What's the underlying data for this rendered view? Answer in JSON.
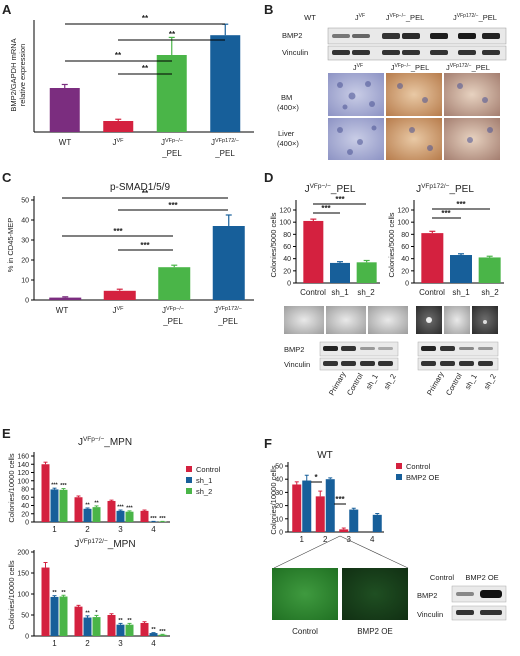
{
  "panels": {
    "A": {
      "letter": "A",
      "ylabel_line1": "BMP2/GAPDH mRNA",
      "ylabel_line2": "relative expression",
      "sig": [
        "**",
        "**",
        "**",
        "**"
      ]
    },
    "B": {
      "letter": "B",
      "lanes": [
        "WT",
        "J",
        "J",
        "J"
      ],
      "lane_sup": [
        "",
        "VF",
        "VFp−/−",
        "VFp172/−"
      ],
      "lane_suffix": [
        "",
        "",
        "_PEL",
        "_PEL"
      ],
      "blots": [
        "BMP2",
        "Vinculin"
      ],
      "tissue_cols": [
        "J",
        "J",
        "J"
      ],
      "tissue_sup": [
        "VF",
        "VFp−/−",
        "VFp172/−"
      ],
      "tissue_suffix": [
        "",
        "_PEL",
        "_PEL"
      ],
      "rows": [
        {
          "l1": "BM",
          "l2": "(400×)"
        },
        {
          "l1": "Liver",
          "l2": "(400×)"
        }
      ]
    },
    "C": {
      "letter": "C",
      "title": "p-SMAD1/5/9",
      "ylabel": "% in CD45-MEP",
      "sig": [
        "**",
        "***",
        "***",
        "***"
      ]
    },
    "D": {
      "letter": "D",
      "left_title": "J",
      "left_sup": "VFp−/−",
      "left_suffix": "_PEL",
      "right_title": "J",
      "right_sup": "VFp172/−",
      "right_suffix": "_PEL",
      "ylabel": "Colonies/5000 cells",
      "sig": [
        "***",
        "***"
      ],
      "blots": [
        "BMP2",
        "Vinculin"
      ],
      "blot_lanes": [
        "Primary",
        "Control",
        "sh_1",
        "sh_2"
      ]
    },
    "E": {
      "letter": "E",
      "top_title": "J",
      "top_sup": "VFp−/−",
      "top_suffix": "_MPN",
      "bottom_title": "J",
      "bottom_sup": "VFp172/−",
      "bottom_suffix": "_MPN",
      "ylabel": "Colonies/10000 cells"
    },
    "F": {
      "letter": "F",
      "title": "WT",
      "ylabel": "Colonies/10000 cells",
      "sig": [
        "*",
        "***"
      ],
      "img_labels": [
        "Control",
        "BMP2 OE"
      ],
      "blot_lanes": [
        "Control",
        "BMP2 OE"
      ],
      "blots": [
        "BMP2",
        "Vinculin"
      ]
    }
  },
  "chart_data": [
    {
      "panel": "A",
      "type": "bar",
      "categories": [
        "WT",
        "JVF",
        "JVFp−/−_PEL",
        "JVFp172/−_PEL"
      ],
      "values": [
        1.0,
        0.25,
        1.75,
        2.2
      ],
      "errors": [
        0.08,
        0.04,
        0.4,
        0.25
      ],
      "colors": [
        "#7b2d7f",
        "#d4213f",
        "#4ab548",
        "#175f9a"
      ],
      "ylim": [
        0,
        2.5
      ],
      "ylabel": "BMP2/GAPDH mRNA relative expression"
    },
    {
      "panel": "C",
      "type": "bar",
      "title": "p-SMAD1/5/9",
      "categories": [
        "WT",
        "JVF",
        "JVFp−/−_PEL",
        "JVFp172/−_PEL"
      ],
      "values": [
        1.2,
        4.6,
        16.4,
        37
      ],
      "errors": [
        0.4,
        0.8,
        1.0,
        5.5
      ],
      "colors": [
        "#7b2d7f",
        "#d4213f",
        "#4ab548",
        "#175f9a"
      ],
      "ylim": [
        0,
        50
      ],
      "yticks": [
        0,
        10,
        20,
        30,
        40,
        50
      ],
      "ylabel": "% in CD45-MEP"
    },
    {
      "panel": "D-left",
      "type": "bar",
      "categories": [
        "Control",
        "sh_1",
        "sh_2"
      ],
      "values": [
        102,
        33,
        34
      ],
      "errors": [
        3,
        2,
        3
      ],
      "colors": [
        "#d4213f",
        "#175f9a",
        "#4ab548"
      ],
      "ylim": [
        0,
        120
      ],
      "yticks": [
        0,
        20,
        40,
        60,
        80,
        100,
        120
      ],
      "ylabel": "Colonies/5000 cells"
    },
    {
      "panel": "D-right",
      "type": "bar",
      "categories": [
        "Control",
        "sh_1",
        "sh_2"
      ],
      "values": [
        82,
        46,
        42
      ],
      "errors": [
        3,
        2,
        2
      ],
      "colors": [
        "#d4213f",
        "#175f9a",
        "#4ab548"
      ],
      "ylim": [
        0,
        120
      ],
      "yticks": [
        0,
        20,
        40,
        60,
        80,
        100,
        120
      ],
      "ylabel": "Colonies/5000 cells"
    },
    {
      "panel": "E-top",
      "type": "bar",
      "categories": [
        "1",
        "2",
        "3",
        "4"
      ],
      "series": [
        {
          "name": "Control",
          "values": [
            140,
            60,
            51,
            27
          ],
          "errors": [
            5,
            3,
            2,
            2
          ],
          "sig": [
            "",
            "",
            "",
            ""
          ]
        },
        {
          "name": "sh_1",
          "values": [
            79,
            32,
            27,
            1
          ],
          "errors": [
            3,
            2,
            2,
            0.5
          ],
          "sig": [
            "***",
            "**",
            "***",
            "***"
          ]
        },
        {
          "name": "sh_2",
          "values": [
            78,
            36,
            25,
            1
          ],
          "errors": [
            3,
            3,
            2,
            0.5
          ],
          "sig": [
            "***",
            "**",
            "***",
            "***"
          ]
        }
      ],
      "colors": [
        "#d4213f",
        "#175f9a",
        "#4ab548"
      ],
      "ylim": [
        0,
        160
      ],
      "yticks": [
        0,
        20,
        40,
        60,
        80,
        100,
        120,
        140,
        160
      ],
      "ylabel": "Colonies/10000 cells"
    },
    {
      "panel": "E-bottom",
      "type": "bar",
      "categories": [
        "1",
        "2",
        "3",
        "4"
      ],
      "series": [
        {
          "name": "Control",
          "values": [
            163,
            70,
            50,
            31
          ],
          "errors": [
            12,
            3,
            3,
            3
          ],
          "sig": [
            "",
            "",
            "",
            ""
          ]
        },
        {
          "name": "sh_1",
          "values": [
            93,
            44,
            27,
            7
          ],
          "errors": [
            3,
            4,
            3,
            1
          ],
          "sig": [
            "**",
            "**",
            "**",
            "**"
          ]
        },
        {
          "name": "sh_2",
          "values": [
            94,
            45,
            27,
            3
          ],
          "errors": [
            3,
            4,
            3,
            1
          ],
          "sig": [
            "**",
            "*",
            "**",
            "***"
          ]
        }
      ],
      "colors": [
        "#d4213f",
        "#175f9a",
        "#4ab548"
      ],
      "ylim": [
        0,
        200
      ],
      "yticks": [
        0,
        50,
        100,
        150,
        200
      ],
      "ylabel": "Colonies/10000 cells"
    },
    {
      "panel": "F",
      "type": "bar",
      "title": "WT",
      "categories": [
        "1",
        "2",
        "3",
        "4"
      ],
      "series": [
        {
          "name": "Control",
          "values": [
            36,
            27,
            2,
            0
          ],
          "errors": [
            2,
            4,
            1,
            0
          ]
        },
        {
          "name": "BMP2 OE",
          "values": [
            39,
            40,
            17,
            13
          ],
          "errors": [
            4,
            1,
            1,
            1
          ]
        }
      ],
      "colors": [
        "#d4213f",
        "#175f9a"
      ],
      "ylim": [
        0,
        50
      ],
      "yticks": [
        0,
        10,
        20,
        30,
        40,
        50
      ],
      "ylabel": "Colonies/10000 cells"
    }
  ]
}
